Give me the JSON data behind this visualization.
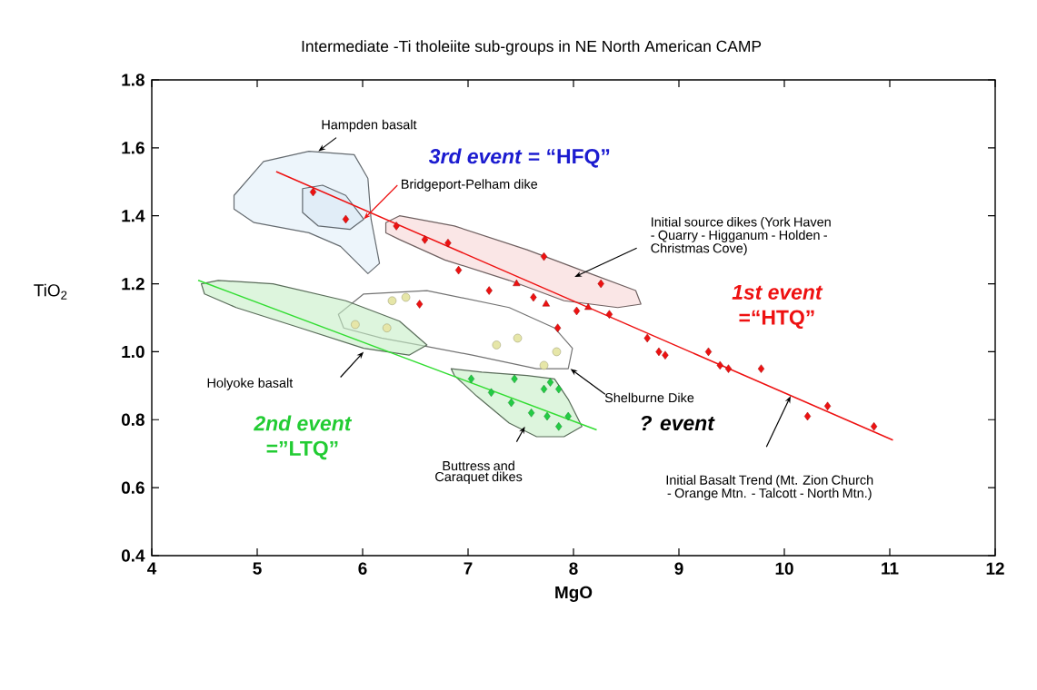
{
  "chart_data": {
    "type": "scatter",
    "title": "Intermediate -Ti tholeiite sub-groups in NE North American CAMP",
    "xlabel": "MgO",
    "ylabel": "TiO$_{2}$",
    "xlim": [
      4,
      12
    ],
    "xticks": [
      4,
      5,
      6,
      7,
      8,
      9,
      10,
      11,
      12
    ],
    "ylim": [
      0.4,
      1.8
    ],
    "yticks": [
      0.4,
      0.6,
      0.8,
      {
        "value": 1.0,
        "label": "1.0"
      },
      1.2,
      1.4,
      1.6,
      1.8
    ],
    "series": [
      {
        "type": "area",
        "color": "#e1eef8",
        "x": [
          4.78,
          5.06,
          5.49,
          5.92,
          6.05,
          6.08,
          6.16,
          6.05,
          5.79,
          5.49,
          4.97,
          4.78
        ],
        "values": [
          1.46,
          1.56,
          1.59,
          1.58,
          1.51,
          1.39,
          1.26,
          1.23,
          1.31,
          1.35,
          1.38,
          1.42
        ]
      },
      {
        "type": "area",
        "color": "#d8e8f5",
        "x": [
          5.43,
          5.62,
          5.84,
          6.01,
          5.88,
          5.58,
          5.43
        ],
        "values": [
          1.48,
          1.49,
          1.46,
          1.39,
          1.36,
          1.37,
          1.41
        ]
      },
      {
        "type": "area",
        "color": "#f7d5d5",
        "x": [
          6.22,
          6.35,
          6.87,
          7.56,
          8.16,
          8.59,
          8.64,
          8.42,
          7.91,
          7.39,
          6.78,
          6.35,
          6.22
        ],
        "values": [
          1.38,
          1.4,
          1.37,
          1.3,
          1.23,
          1.18,
          1.14,
          1.13,
          1.15,
          1.21,
          1.27,
          1.33,
          1.35
        ]
      },
      {
        "type": "area",
        "color": "#ffffff",
        "x": [
          5.77,
          6.01,
          6.61,
          7.39,
          7.82,
          7.99,
          7.95,
          7.65,
          7.04,
          6.53,
          6.18,
          5.82
        ],
        "values": [
          1.11,
          1.17,
          1.18,
          1.13,
          1.07,
          1.01,
          0.95,
          0.95,
          0.99,
          1.02,
          1.04,
          1.07
        ]
      },
      {
        "type": "area",
        "color": "#c6efc6",
        "x": [
          4.47,
          4.63,
          5.15,
          5.84,
          6.35,
          6.61,
          6.44,
          6.01,
          5.41,
          4.8,
          4.5
        ],
        "values": [
          1.2,
          1.21,
          1.2,
          1.15,
          1.09,
          1.02,
          0.99,
          1.01,
          1.07,
          1.13,
          1.17
        ]
      },
      {
        "type": "area",
        "color": "#c6efc6",
        "x": [
          6.84,
          7.13,
          7.56,
          7.82,
          7.95,
          8.08,
          7.91,
          7.65,
          7.39,
          7.08,
          6.87
        ],
        "values": [
          0.95,
          0.94,
          0.93,
          0.92,
          0.86,
          0.78,
          0.75,
          0.75,
          0.79,
          0.87,
          0.93
        ]
      },
      {
        "type": "line",
        "color": "#ee1111",
        "x": [
          5.18,
          11.03
        ],
        "values": [
          1.53,
          0.74
        ]
      },
      {
        "type": "line",
        "color": "#33dd33",
        "x": [
          4.44,
          8.22
        ],
        "values": [
          1.21,
          0.77
        ]
      },
      {
        "marker": "diamond",
        "color": "#ee1111",
        "x": [
          5.53,
          5.84,
          6.32,
          6.59,
          6.81,
          6.91,
          7.2,
          6.54,
          7.72,
          7.62,
          8.26,
          8.03,
          8.34,
          7.85,
          8.7,
          8.81,
          8.87,
          9.28,
          9.39,
          9.47,
          9.78,
          10.22,
          10.41,
          10.85
        ],
        "values": [
          1.47,
          1.39,
          1.37,
          1.33,
          1.32,
          1.24,
          1.18,
          1.14,
          1.28,
          1.16,
          1.2,
          1.12,
          1.11,
          1.07,
          1.04,
          1.0,
          0.99,
          1.0,
          0.96,
          0.95,
          0.95,
          0.81,
          0.84,
          0.78
        ]
      },
      {
        "marker": "triangle",
        "color": "#ee1111",
        "x": [
          7.46,
          7.74,
          8.14
        ],
        "values": [
          1.2,
          1.14,
          1.13
        ]
      },
      {
        "marker": "circle",
        "color": "#e6e6a8",
        "x": [
          6.28,
          6.41,
          5.93,
          6.23,
          7.27,
          7.47,
          7.84,
          7.72
        ],
        "values": [
          1.15,
          1.16,
          1.08,
          1.07,
          1.02,
          1.04,
          1.0,
          0.96
        ]
      },
      {
        "marker": "diamond",
        "color": "#22cc44",
        "x": [
          7.03,
          7.44,
          7.22,
          7.78,
          7.72,
          7.86,
          7.41,
          7.6,
          7.75,
          7.95,
          7.86
        ],
        "values": [
          0.92,
          0.92,
          0.88,
          0.91,
          0.89,
          0.89,
          0.85,
          0.82,
          0.81,
          0.81,
          0.78
        ]
      }
    ],
    "annotations": [
      "Hampden basalt",
      "Bridgeport-Pelham dike",
      "Initial source dikes (York Haven - Quarry - Higganum - Holden - Christmas Cove)",
      "Holyoke basalt",
      "Shelburne Dike",
      "Buttress and Caraquet dikes",
      "Initial Basalt Trend (Mt. Zion Church - Orange Mtn. - Talcott - North Mtn.)",
      "*3rd event* = “HFQ”",
      "1st event",
      "=“HTQ”",
      "2nd event",
      "=”LTQ”",
      "? event"
    ]
  }
}
